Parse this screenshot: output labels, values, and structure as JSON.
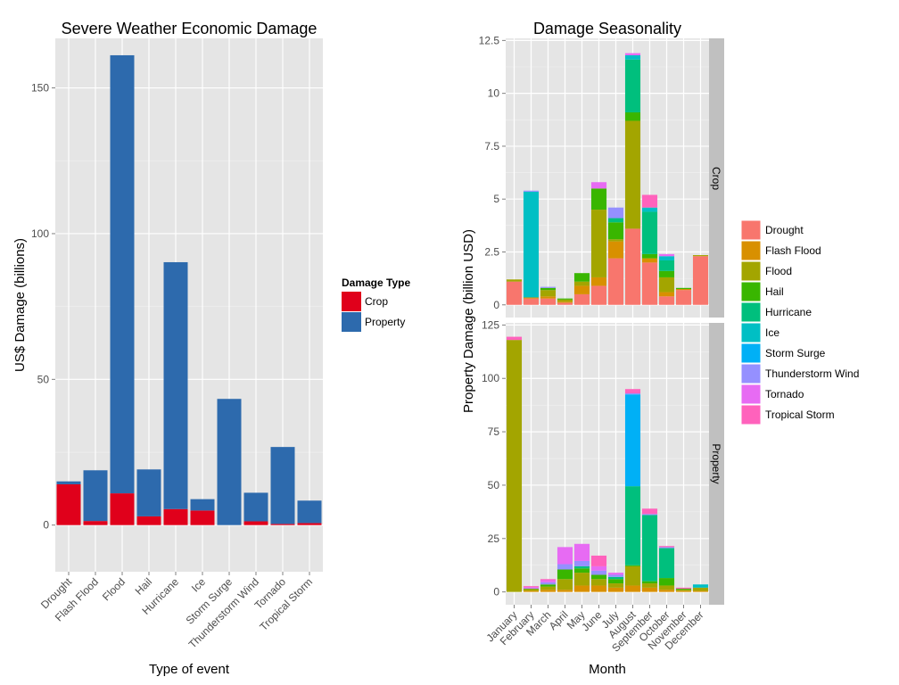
{
  "chart_data": [
    {
      "type": "bar",
      "stacked": true,
      "title": "Severe Weather Economic Damage",
      "xlabel": "Type of event",
      "ylabel": "US$ Damage (billions)",
      "ylim": [
        -16,
        167
      ],
      "yticks": [
        0,
        50,
        100,
        150
      ],
      "grid": true,
      "legend_title": "Damage Type",
      "legend_position": "right",
      "categories": [
        "Drought",
        "Flash Flood",
        "Flood",
        "Hail",
        "Hurricane",
        "Ice",
        "Storm Surge",
        "Thunderstorm Wind",
        "Tornado",
        "Tropical Storm"
      ],
      "series": [
        {
          "name": "Crop",
          "color": "#E0001B",
          "values": [
            14.0,
            1.4,
            10.9,
            3.0,
            5.5,
            5.0,
            0.0,
            1.3,
            0.4,
            0.7
          ]
        },
        {
          "name": "Property",
          "color": "#2D6AAD",
          "values": [
            1.0,
            17.4,
            150.3,
            16.1,
            84.7,
            3.9,
            43.3,
            9.8,
            26.4,
            7.7
          ]
        }
      ]
    },
    {
      "type": "bar",
      "stacked": true,
      "facets": [
        "Crop",
        "Property"
      ],
      "title": "Damage Seasonality",
      "xlabel": "Month",
      "ylabel": "Property Damage (billion USD)",
      "grid": true,
      "legend_position": "right",
      "categories": [
        "January",
        "February",
        "March",
        "April",
        "May",
        "June",
        "July",
        "August",
        "September",
        "October",
        "November",
        "December"
      ],
      "event_types": [
        "Drought",
        "Flash Flood",
        "Flood",
        "Hail",
        "Hurricane",
        "Ice",
        "Storm Surge",
        "Thunderstorm Wind",
        "Tornado",
        "Tropical Storm"
      ],
      "colors": [
        "#F8766D",
        "#D89000",
        "#A3A500",
        "#39B600",
        "#00BF7D",
        "#00BFC4",
        "#00B0F6",
        "#9590FF",
        "#E76BF3",
        "#FF62BC"
      ],
      "panels": [
        {
          "facet": "Crop",
          "ylim": [
            -0.6,
            12.6
          ],
          "yticks": [
            0,
            2.5,
            5,
            7.5,
            10,
            12.5
          ],
          "ytick_labels": [
            "0",
            "2.5",
            "5",
            "7.5",
            "10",
            "12.5"
          ],
          "values": [
            [
              1.1,
              0.0,
              0.1,
              0.0,
              0.0,
              0.0,
              0.0,
              0.0,
              0.0,
              0.0
            ],
            [
              0.3,
              0.05,
              0.0,
              0.0,
              0.0,
              5.0,
              0.0,
              0.05,
              0.0,
              0.0
            ],
            [
              0.3,
              0.1,
              0.3,
              0.1,
              0.0,
              0.0,
              0.0,
              0.05,
              0.0,
              0.0
            ],
            [
              0.1,
              0.05,
              0.1,
              0.05,
              0.0,
              0.0,
              0.0,
              0.0,
              0.0,
              0.0
            ],
            [
              0.5,
              0.4,
              0.2,
              0.4,
              0.0,
              0.0,
              0.0,
              0.0,
              0.0,
              0.0
            ],
            [
              0.9,
              0.4,
              3.2,
              1.0,
              0.0,
              0.0,
              0.0,
              0.0,
              0.3,
              0.0
            ],
            [
              2.2,
              0.8,
              0.1,
              0.8,
              0.2,
              0.0,
              0.0,
              0.5,
              0.0,
              0.0
            ],
            [
              3.6,
              0.0,
              5.1,
              0.4,
              2.5,
              0.2,
              0.0,
              0.0,
              0.1,
              0.0
            ],
            [
              2.0,
              0.2,
              0.0,
              0.2,
              2.0,
              0.2,
              0.0,
              0.0,
              0.0,
              0.6
            ],
            [
              0.4,
              0.2,
              0.7,
              0.3,
              0.5,
              0.2,
              0.0,
              0.0,
              0.1,
              0.0
            ],
            [
              0.7,
              0.05,
              0.0,
              0.05,
              0.0,
              0.0,
              0.0,
              0.0,
              0.0,
              0.0
            ],
            [
              2.3,
              0.0,
              0.05,
              0.0,
              0.0,
              0.0,
              0.0,
              0.0,
              0.0,
              0.0
            ]
          ]
        },
        {
          "facet": "Property",
          "ylim": [
            -6,
            126
          ],
          "yticks": [
            0,
            25,
            50,
            75,
            100,
            125
          ],
          "ytick_labels": [
            "0",
            "25",
            "50",
            "75",
            "100",
            "125"
          ],
          "values": [
            [
              0.0,
              0.0,
              118.0,
              0.0,
              0.0,
              0.0,
              0.0,
              0.0,
              0.0,
              1.5
            ],
            [
              0.0,
              0.5,
              0.8,
              0.2,
              0.0,
              0.0,
              0.0,
              0.2,
              0.5,
              0.5
            ],
            [
              0.0,
              1.0,
              1.5,
              1.0,
              0.0,
              0.0,
              0.0,
              1.0,
              1.0,
              0.5
            ],
            [
              0.0,
              1.0,
              5.0,
              4.5,
              0.0,
              0.0,
              0.0,
              2.5,
              8.0,
              0.0
            ],
            [
              0.0,
              3.0,
              6.0,
              2.0,
              1.0,
              0.0,
              0.0,
              2.5,
              8.0,
              0.0
            ],
            [
              0.0,
              3.0,
              3.0,
              2.0,
              0.0,
              0.0,
              0.0,
              2.0,
              2.0,
              5.0
            ],
            [
              0.0,
              2.0,
              2.0,
              2.0,
              1.0,
              0.0,
              0.0,
              1.0,
              1.0,
              0.0
            ],
            [
              0.0,
              3.0,
              9.0,
              0.5,
              37.0,
              0.0,
              43.0,
              0.5,
              0.0,
              2.0
            ],
            [
              0.0,
              2.0,
              2.0,
              1.0,
              31.0,
              0.0,
              0.0,
              0.5,
              0.0,
              2.5
            ],
            [
              0.0,
              1.0,
              2.0,
              3.5,
              14.0,
              0.0,
              0.0,
              0.5,
              0.0,
              0.5
            ],
            [
              0.0,
              0.5,
              0.5,
              0.5,
              0.0,
              0.0,
              0.0,
              0.0,
              0.0,
              0.5
            ],
            [
              0.0,
              0.5,
              1.5,
              0.0,
              0.0,
              1.5,
              0.0,
              0.0,
              0.0,
              0.0
            ]
          ]
        }
      ]
    }
  ]
}
